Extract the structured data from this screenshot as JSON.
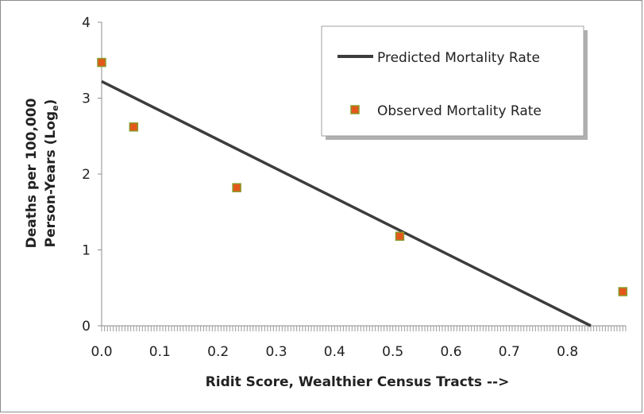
{
  "chart_data": {
    "type": "scatter",
    "xlabel": "Ridit Score, Wealthier Census Tracts -->",
    "ylabel_line1": "Deaths per 100,000",
    "ylabel_line2": "Person-Years (Log",
    "ylabel_subscript": "e",
    "ylabel_close": ")",
    "xlim": [
      0,
      0.9
    ],
    "ylim": [
      0,
      4
    ],
    "x_ticks": [
      "0.0",
      "0.1",
      "0.2",
      "0.3",
      "0.4",
      "0.5",
      "0.6",
      "0.7",
      "0.8"
    ],
    "x_tick_values": [
      0,
      0.1,
      0.2,
      0.3,
      0.4,
      0.5,
      0.6,
      0.7,
      0.8
    ],
    "y_ticks": [
      "0",
      "1",
      "2",
      "3",
      "4"
    ],
    "y_tick_values": [
      0,
      1,
      2,
      3,
      4
    ],
    "grid": false,
    "legend_position": "top-right",
    "series": [
      {
        "name": "Predicted Mortality Rate",
        "kind": "line",
        "color": "#3d3d3d",
        "x": [
          0,
          0.84
        ],
        "y": [
          3.22,
          0
        ]
      },
      {
        "name": "Observed Mortality Rate",
        "kind": "scatter",
        "color": "#e4571b",
        "edge_color": "#8a9a2a",
        "x": [
          0.0,
          0.055,
          0.232,
          0.512,
          0.895
        ],
        "y": [
          3.47,
          2.62,
          1.82,
          1.18,
          0.45
        ]
      }
    ]
  }
}
